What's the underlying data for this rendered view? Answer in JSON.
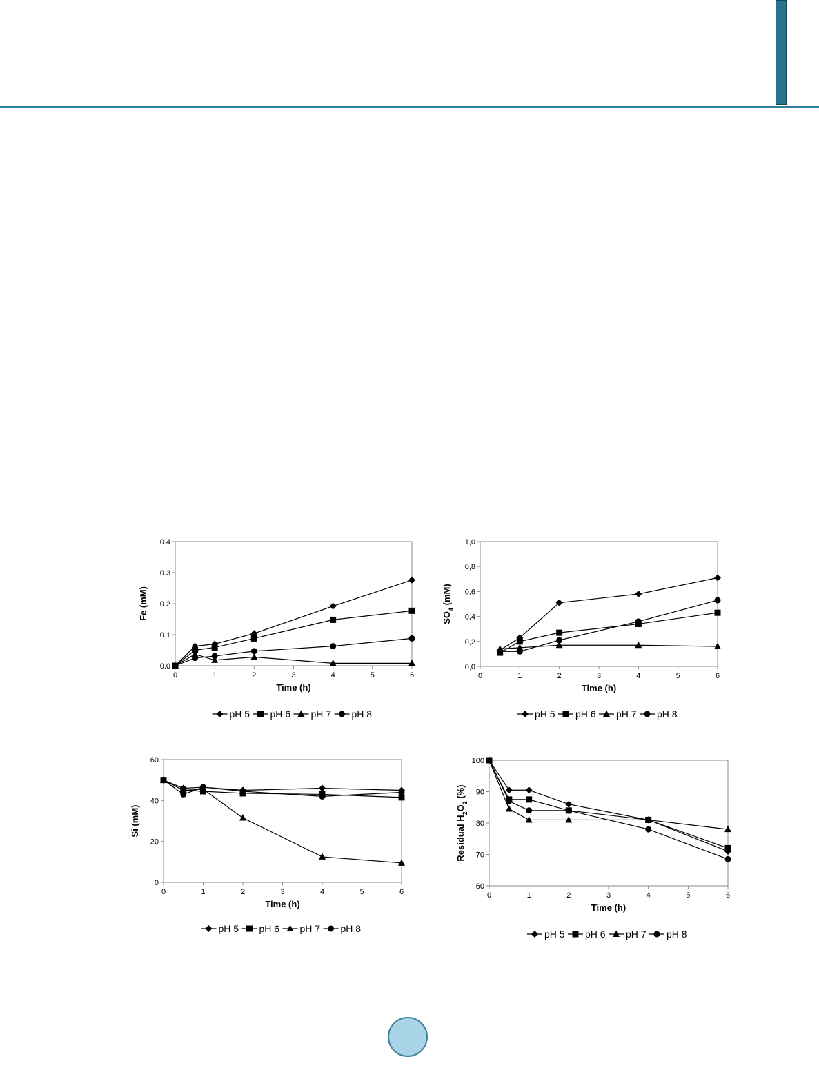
{
  "page": {
    "header": {
      "rule_color": "#2e7fa0",
      "tab_color": "#25738f"
    },
    "footer": {
      "page_circle_color": "#a9d3e6"
    }
  },
  "chart_data": [
    {
      "id": "fe",
      "type": "line",
      "x": [
        0,
        0.5,
        1,
        2,
        4,
        6
      ],
      "xticks": [
        0,
        1,
        2,
        3,
        4,
        5,
        6
      ],
      "xtick_labels": [
        "0",
        "1",
        "2",
        "3",
        "4",
        "5",
        "6"
      ],
      "xlim": [
        0,
        6
      ],
      "ylim": [
        0,
        0.4
      ],
      "yticks": [
        0,
        0.1,
        0.2,
        0.3,
        0.4
      ],
      "ytick_labels": [
        "0.0",
        "0.1",
        "0.2",
        "0.3",
        "0.4"
      ],
      "xlabel": "Time (h)",
      "ylabel": "Fe  (mM)",
      "grid": false,
      "legend_position": "bottom",
      "series": [
        {
          "name": "pH 5",
          "marker": "diamond",
          "values": [
            0,
            0.063,
            0.07,
            0.104,
            0.192,
            0.276
          ]
        },
        {
          "name": "pH 6",
          "marker": "square",
          "values": [
            0,
            0.05,
            0.059,
            0.088,
            0.148,
            0.177
          ]
        },
        {
          "name": "pH 7",
          "marker": "triangle",
          "values": [
            0,
            0.037,
            0.018,
            0.028,
            0.008,
            0.008
          ]
        },
        {
          "name": "pH 8",
          "marker": "circle",
          "values": [
            0,
            0.025,
            0.031,
            0.047,
            0.063,
            0.088
          ]
        }
      ]
    },
    {
      "id": "so4",
      "type": "line",
      "x": [
        0.5,
        1,
        2,
        4,
        6
      ],
      "xticks": [
        0,
        1,
        2,
        3,
        4,
        5,
        6
      ],
      "xtick_labels": [
        "0",
        "1",
        "2",
        "3",
        "4",
        "5",
        "6"
      ],
      "xlim": [
        0,
        6
      ],
      "ylim": [
        0,
        1.0
      ],
      "yticks": [
        0,
        0.2,
        0.4,
        0.6,
        0.8,
        1.0
      ],
      "ytick_labels": [
        "0,0",
        "0,2",
        "0,4",
        "0,6",
        "0,8",
        "1,0"
      ],
      "xlabel": "Time (h)",
      "ylabel": "SO4  (mM)",
      "grid": false,
      "legend_position": "bottom",
      "series": [
        {
          "name": "pH 5",
          "marker": "diamond",
          "values": [
            0.13,
            0.23,
            0.51,
            0.58,
            0.71
          ]
        },
        {
          "name": "pH 6",
          "marker": "square",
          "values": [
            0.11,
            0.2,
            0.27,
            0.34,
            0.43
          ]
        },
        {
          "name": "pH 7",
          "marker": "triangle",
          "values": [
            0.14,
            0.15,
            0.17,
            0.17,
            0.16
          ]
        },
        {
          "name": "pH 8",
          "marker": "circle",
          "values": [
            0.12,
            0.12,
            0.21,
            0.36,
            0.53
          ]
        }
      ]
    },
    {
      "id": "si",
      "type": "line",
      "x": [
        0,
        0.5,
        1,
        2,
        4,
        6
      ],
      "xticks": [
        0,
        1,
        2,
        3,
        4,
        5,
        6
      ],
      "xtick_labels": [
        "0",
        "1",
        "2",
        "3",
        "4",
        "5",
        "6"
      ],
      "xlim": [
        0,
        6
      ],
      "ylim": [
        0,
        60
      ],
      "yticks": [
        0,
        20,
        40,
        60
      ],
      "ytick_labels": [
        "0",
        "20",
        "40",
        "60"
      ],
      "xlabel": "Time (h)",
      "ylabel": "Si  (mM)",
      "grid": false,
      "legend_position": "bottom",
      "series": [
        {
          "name": "pH 5",
          "marker": "diamond",
          "values": [
            50,
            46,
            46.5,
            45,
            46,
            45
          ]
        },
        {
          "name": "pH 6",
          "marker": "square",
          "values": [
            50,
            45,
            44.5,
            43.5,
            43,
            41.5
          ]
        },
        {
          "name": "pH 7",
          "marker": "triangle",
          "values": [
            50,
            45,
            45.5,
            31.5,
            12.5,
            9.5
          ]
        },
        {
          "name": "pH 8",
          "marker": "circle",
          "values": [
            50,
            43,
            46.5,
            44.5,
            42,
            44
          ]
        }
      ]
    },
    {
      "id": "h2o2",
      "type": "line",
      "x": [
        0,
        0.5,
        1,
        2,
        4,
        6
      ],
      "xticks": [
        0,
        1,
        2,
        3,
        4,
        5,
        6
      ],
      "xtick_labels": [
        "0",
        "1",
        "2",
        "3",
        "4",
        "5",
        "6"
      ],
      "xlim": [
        0,
        6
      ],
      "ylim": [
        60,
        100
      ],
      "yticks": [
        60,
        70,
        80,
        90,
        100
      ],
      "ytick_labels": [
        "60",
        "70",
        "80",
        "90",
        "100"
      ],
      "xlabel": "Time (h)",
      "ylabel": "Residual H2O2 (%)",
      "grid": false,
      "legend_position": "bottom",
      "series": [
        {
          "name": "pH 5",
          "marker": "diamond",
          "values": [
            100,
            90.5,
            90.5,
            86,
            81,
            71
          ]
        },
        {
          "name": "pH 6",
          "marker": "square",
          "values": [
            100,
            87.5,
            87.5,
            84,
            81,
            72
          ]
        },
        {
          "name": "pH 7",
          "marker": "triangle",
          "values": [
            100,
            84.5,
            81,
            81,
            81,
            78
          ]
        },
        {
          "name": "pH 8",
          "marker": "circle",
          "values": [
            100,
            87,
            84,
            84,
            78,
            68.5
          ]
        }
      ]
    }
  ]
}
